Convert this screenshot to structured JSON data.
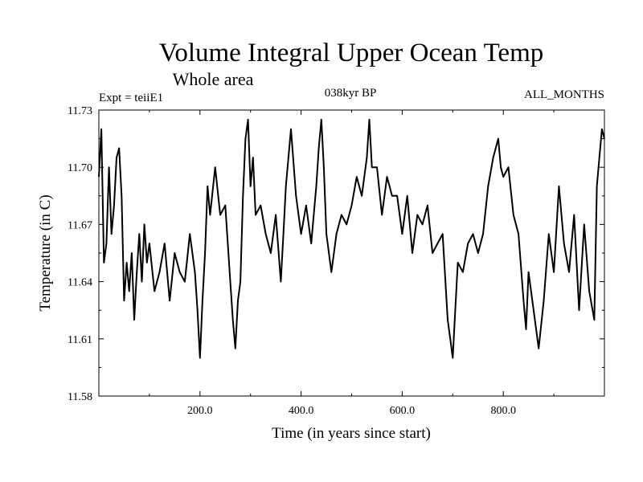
{
  "chart_data": {
    "type": "line",
    "title": "Volume Integral Upper Ocean Temp",
    "subtitle": "Whole area",
    "annotations": {
      "experiment": "Expt = teiiE1",
      "period": "038kyr BP",
      "months": "ALL_MONTHS"
    },
    "xlabel": "Time (in years since start)",
    "ylabel": "Temperature (in C)",
    "xlim": [
      0,
      1000
    ],
    "ylim": [
      11.58,
      11.73
    ],
    "x_ticks": [
      200,
      400,
      600,
      800
    ],
    "x_tick_labels": [
      "200.0",
      "400.0",
      "600.0",
      "800.0"
    ],
    "y_ticks": [
      11.58,
      11.61,
      11.64,
      11.67,
      11.7,
      11.73
    ],
    "y_tick_labels": [
      "11.58",
      "11.61",
      "11.64",
      "11.67",
      "11.70",
      "11.73"
    ],
    "grid": false,
    "series": [
      {
        "color": "#000000",
        "x": [
          0,
          5,
          10,
          15,
          20,
          25,
          30,
          35,
          40,
          45,
          50,
          55,
          60,
          65,
          70,
          75,
          80,
          85,
          90,
          95,
          100,
          110,
          120,
          130,
          140,
          150,
          160,
          170,
          180,
          190,
          195,
          200,
          205,
          210,
          215,
          220,
          230,
          240,
          250,
          255,
          260,
          265,
          270,
          275,
          280,
          285,
          290,
          295,
          300,
          305,
          310,
          320,
          330,
          340,
          350,
          360,
          365,
          370,
          380,
          390,
          400,
          410,
          420,
          430,
          435,
          440,
          445,
          450,
          460,
          470,
          480,
          490,
          500,
          510,
          520,
          530,
          535,
          540,
          550,
          560,
          570,
          580,
          590,
          600,
          610,
          620,
          630,
          640,
          650,
          660,
          670,
          680,
          690,
          695,
          700,
          705,
          710,
          720,
          730,
          740,
          750,
          760,
          770,
          780,
          790,
          795,
          800,
          810,
          820,
          830,
          840,
          845,
          850,
          860,
          870,
          880,
          890,
          900,
          910,
          920,
          930,
          940,
          950,
          960,
          970,
          980,
          985,
          990,
          995,
          1000
        ],
        "values": [
          11.695,
          11.72,
          11.65,
          11.66,
          11.7,
          11.665,
          11.68,
          11.705,
          11.71,
          11.685,
          11.63,
          11.65,
          11.635,
          11.655,
          11.62,
          11.645,
          11.665,
          11.64,
          11.67,
          11.65,
          11.66,
          11.635,
          11.645,
          11.66,
          11.63,
          11.655,
          11.645,
          11.64,
          11.665,
          11.645,
          11.625,
          11.6,
          11.63,
          11.655,
          11.69,
          11.675,
          11.7,
          11.675,
          11.68,
          11.66,
          11.64,
          11.62,
          11.605,
          11.63,
          11.64,
          11.685,
          11.715,
          11.725,
          11.69,
          11.705,
          11.675,
          11.68,
          11.665,
          11.655,
          11.675,
          11.64,
          11.665,
          11.69,
          11.72,
          11.685,
          11.665,
          11.68,
          11.66,
          11.69,
          11.71,
          11.725,
          11.7,
          11.665,
          11.645,
          11.665,
          11.675,
          11.67,
          11.68,
          11.695,
          11.685,
          11.705,
          11.725,
          11.7,
          11.7,
          11.675,
          11.695,
          11.685,
          11.685,
          11.665,
          11.685,
          11.655,
          11.675,
          11.67,
          11.68,
          11.655,
          11.66,
          11.665,
          11.62,
          11.61,
          11.6,
          11.625,
          11.65,
          11.645,
          11.66,
          11.665,
          11.655,
          11.665,
          11.69,
          11.705,
          11.715,
          11.7,
          11.695,
          11.7,
          11.675,
          11.665,
          11.63,
          11.615,
          11.645,
          11.625,
          11.605,
          11.63,
          11.665,
          11.645,
          11.69,
          11.66,
          11.645,
          11.675,
          11.625,
          11.67,
          11.635,
          11.62,
          11.69,
          11.705,
          11.72,
          11.715
        ]
      }
    ]
  }
}
